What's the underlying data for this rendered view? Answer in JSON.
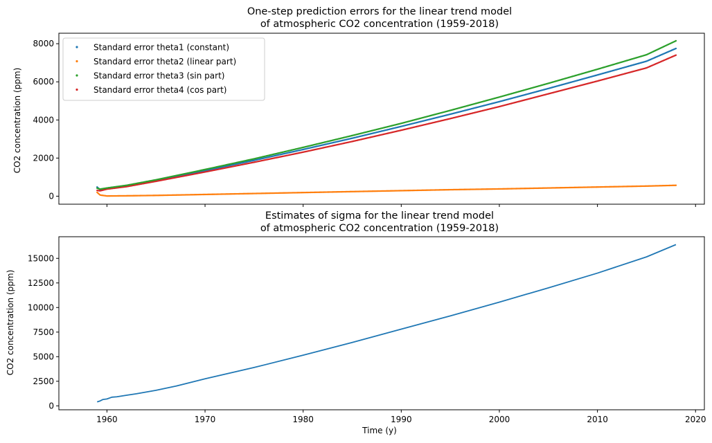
{
  "chart_data": [
    {
      "type": "scatter",
      "title_line1": "One-step prediction errors for the linear trend model",
      "title_line2": "of atmospheric CO2 concentration (1959-2018)",
      "xlabel": "",
      "ylabel": "CO2 concentration (ppm)",
      "xlim": [
        1955.1,
        2020.9
      ],
      "ylim": [
        -420,
        8550
      ],
      "xticks": [
        1960,
        1970,
        1980,
        1990,
        2000,
        2010,
        2020
      ],
      "xtick_labels_visible": false,
      "yticks": [
        0,
        2000,
        4000,
        6000,
        8000
      ],
      "ytick_labels": [
        "0",
        "2000",
        "4000",
        "6000",
        "8000"
      ],
      "legend_position": "upper-left",
      "grid": false,
      "series": [
        {
          "name": "Standard error theta1 (constant)",
          "color": "#1f77b4",
          "x": [
            1959.0,
            1959.3,
            1960,
            1962,
            1965,
            1970,
            1975,
            1980,
            1985,
            1990,
            1995,
            2000,
            2005,
            2010,
            2015,
            2018.0
          ],
          "y": [
            480,
            340,
            420,
            560,
            830,
            1340,
            1880,
            2450,
            3040,
            3660,
            4300,
            4960,
            5650,
            6360,
            7080,
            7750
          ]
        },
        {
          "name": "Standard error theta2 (linear part)",
          "color": "#ff7f0e",
          "x": [
            1959.0,
            1959.3,
            1960,
            1962,
            1965,
            1970,
            1975,
            1980,
            1985,
            1990,
            1995,
            2000,
            2005,
            2010,
            2015,
            2018.0
          ],
          "y": [
            200,
            60,
            10,
            20,
            40,
            90,
            140,
            190,
            240,
            290,
            340,
            380,
            430,
            480,
            530,
            570
          ]
        },
        {
          "name": "Standard error theta3 (sin part)",
          "color": "#2ca02c",
          "x": [
            1959.0,
            1959.3,
            1960,
            1962,
            1965,
            1970,
            1975,
            1980,
            1985,
            1990,
            1995,
            2000,
            2005,
            2010,
            2015,
            2018.0
          ],
          "y": [
            420,
            370,
            430,
            570,
            860,
            1400,
            1960,
            2560,
            3180,
            3820,
            4500,
            5200,
            5920,
            6660,
            7420,
            8150
          ]
        },
        {
          "name": "Standard error theta4 (cos part)",
          "color": "#d62728",
          "x": [
            1959.0,
            1959.3,
            1960,
            1962,
            1965,
            1970,
            1975,
            1980,
            1985,
            1990,
            1995,
            2000,
            2005,
            2010,
            2015,
            2018.0
          ],
          "y": [
            300,
            280,
            370,
            500,
            780,
            1270,
            1780,
            2310,
            2870,
            3460,
            4070,
            4700,
            5370,
            6040,
            6730,
            7400
          ]
        }
      ]
    },
    {
      "type": "line",
      "title_line1": "Estimates of sigma for the linear trend model",
      "title_line2": "of atmospheric CO2 concentration (1959-2018)",
      "xlabel": "Time (y)",
      "ylabel": "CO2 concentration (ppm)",
      "xlim": [
        1955.1,
        2020.9
      ],
      "ylim": [
        -400,
        17200
      ],
      "xticks": [
        1960,
        1970,
        1980,
        1990,
        2000,
        2010,
        2020
      ],
      "xtick_labels": [
        "1960",
        "1970",
        "1980",
        "1990",
        "2000",
        "2010",
        "2020"
      ],
      "yticks": [
        0,
        2500,
        5000,
        7500,
        10000,
        12500,
        15000
      ],
      "ytick_labels": [
        "0",
        "2500",
        "5000",
        "7500",
        "10000",
        "12500",
        "15000"
      ],
      "grid": false,
      "series": [
        {
          "color": "#1f77b4",
          "x": [
            1959.0,
            1959.3,
            1959.6,
            1960,
            1960.5,
            1961,
            1962,
            1963,
            1965,
            1967,
            1970,
            1975,
            1980,
            1985,
            1990,
            1995,
            2000,
            2005,
            2010,
            2015,
            2018.0
          ],
          "y": [
            400,
            500,
            650,
            700,
            880,
            920,
            1080,
            1230,
            1580,
            2000,
            2750,
            3900,
            5150,
            6450,
            7800,
            9150,
            10550,
            12000,
            13500,
            15150,
            16400
          ]
        }
      ]
    }
  ]
}
